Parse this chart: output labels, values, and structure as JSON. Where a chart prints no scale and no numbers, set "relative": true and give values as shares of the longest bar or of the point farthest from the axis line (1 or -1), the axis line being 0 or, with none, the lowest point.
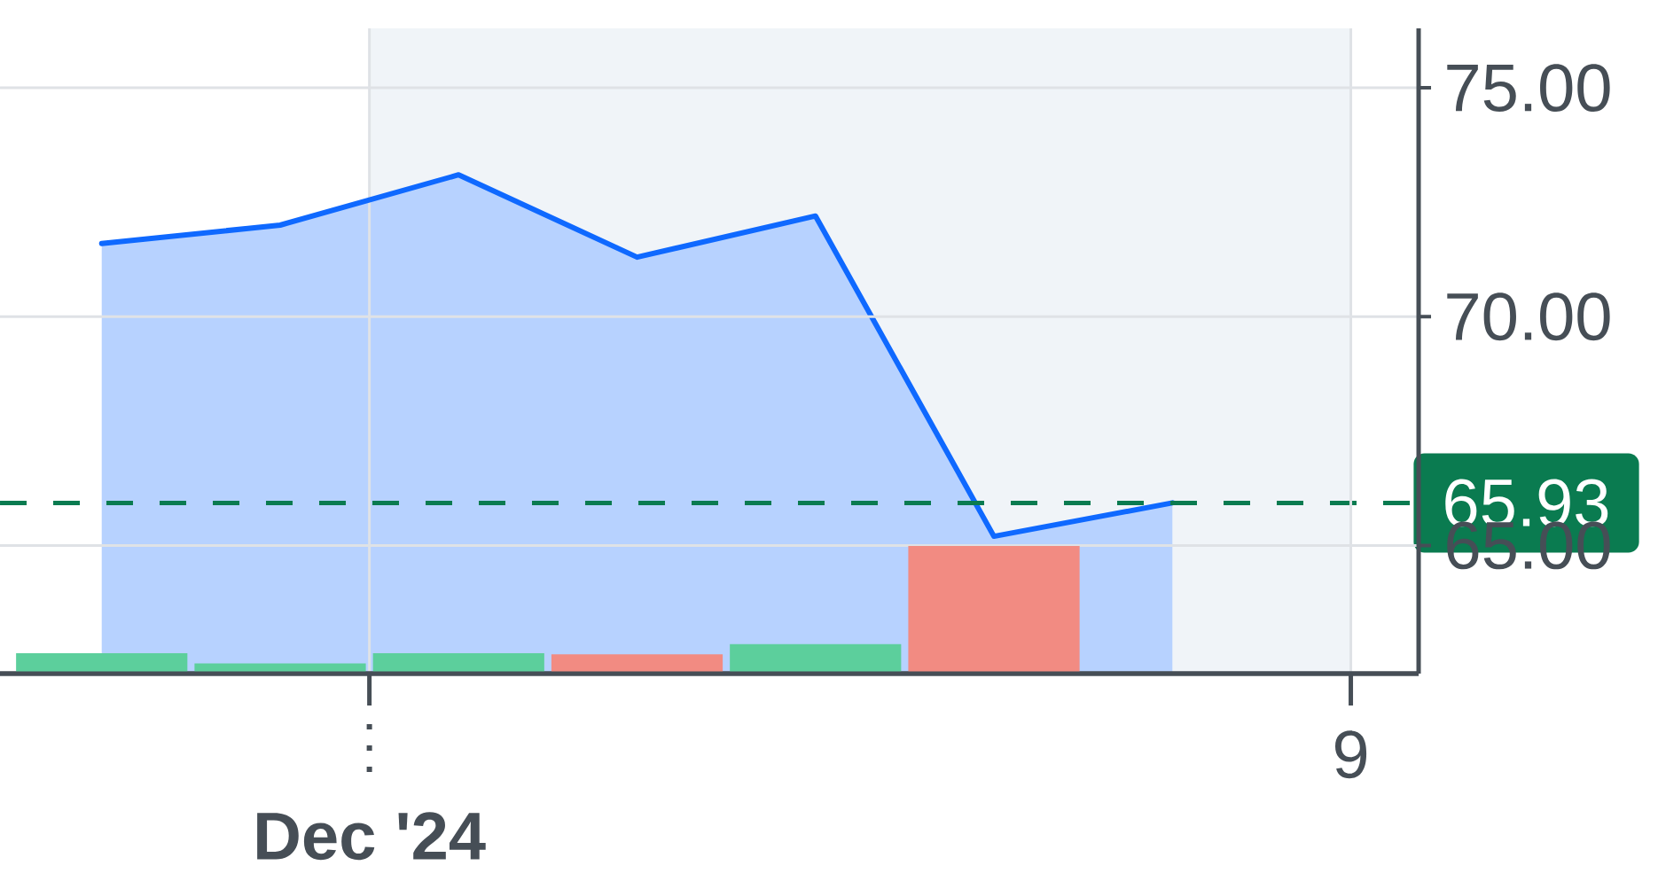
{
  "chart_data": [
    {
      "type": "area",
      "categories": [
        null,
        null,
        null,
        null,
        null,
        null,
        null,
        "9"
      ],
      "values": [
        71.6,
        72.0,
        73.1,
        71.3,
        72.2,
        65.2,
        65.93,
        null
      ],
      "color": "#0f69ff",
      "ylim": [
        62.2,
        76.3
      ],
      "yticks": [
        {
          "value": 75,
          "label": "75.00"
        },
        {
          "value": 70,
          "label": "70.00"
        },
        {
          "value": 65,
          "label": "65.00"
        }
      ],
      "grid": true,
      "ref_lines": [
        {
          "axis": "y",
          "value": 65.93,
          "label": "65.93",
          "color": "#0a7b50",
          "line_style": "dashed"
        }
      ],
      "annotations": [
        "**Dec '24**"
      ]
    },
    {
      "type": "bar",
      "relative": true,
      "categories": [
        null,
        null,
        null,
        null,
        null,
        null,
        null,
        null
      ],
      "values": [
        0.16,
        0.08,
        0.16,
        0.15,
        0.23,
        1,
        null,
        null
      ],
      "colors": [
        "#5ccf9c",
        "#5ccf9c",
        "#5ccf9c",
        "#f28b82",
        "#5ccf9c",
        "#f28b82",
        null,
        null
      ]
    }
  ]
}
